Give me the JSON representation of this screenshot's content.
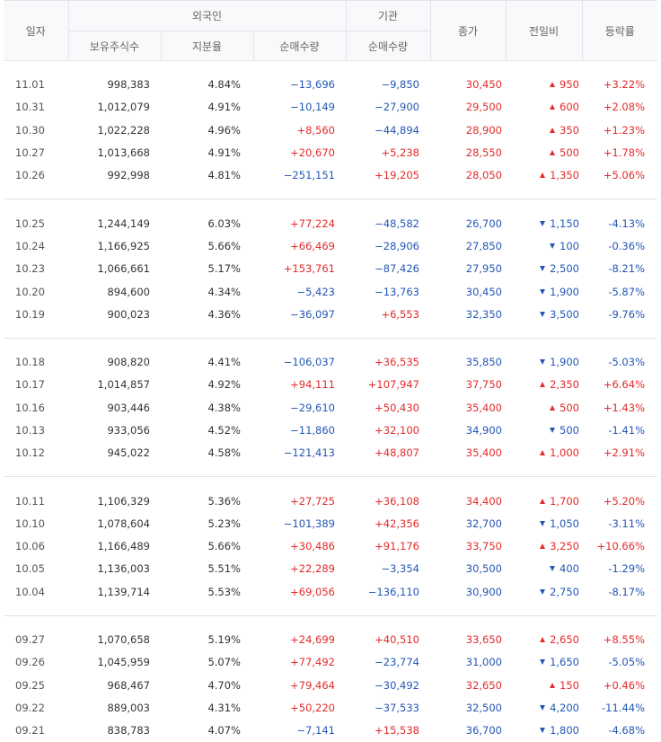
{
  "colors": {
    "up": "#e22b2b",
    "down": "#2457b5"
  },
  "header": {
    "date": "일자",
    "foreign": "외국인",
    "institution": "기관",
    "holdings": "보유주식수",
    "ratio": "지분율",
    "foreign_net": "순매수량",
    "inst_net": "순매수량",
    "close": "종가",
    "change": "전일비",
    "rate": "등락률"
  },
  "rows": [
    {
      "date": "11.01",
      "holdings": "998,383",
      "ratio": "4.84%",
      "fnet": "−13,696",
      "inet": "−9,850",
      "close": "30,450",
      "dir": "up",
      "change": "950",
      "rate": "+3.22%"
    },
    {
      "date": "10.31",
      "holdings": "1,012,079",
      "ratio": "4.91%",
      "fnet": "−10,149",
      "inet": "−27,900",
      "close": "29,500",
      "dir": "up",
      "change": "600",
      "rate": "+2.08%"
    },
    {
      "date": "10.30",
      "holdings": "1,022,228",
      "ratio": "4.96%",
      "fnet": "+8,560",
      "inet": "−44,894",
      "close": "28,900",
      "dir": "up",
      "change": "350",
      "rate": "+1.23%"
    },
    {
      "date": "10.27",
      "holdings": "1,013,668",
      "ratio": "4.91%",
      "fnet": "+20,670",
      "inet": "+5,238",
      "close": "28,550",
      "dir": "up",
      "change": "500",
      "rate": "+1.78%"
    },
    {
      "date": "10.26",
      "holdings": "992,998",
      "ratio": "4.81%",
      "fnet": "−251,151",
      "inet": "+19,205",
      "close": "28,050",
      "dir": "up",
      "change": "1,350",
      "rate": "+5.06%"
    },
    {
      "date": "10.25",
      "holdings": "1,244,149",
      "ratio": "6.03%",
      "fnet": "+77,224",
      "inet": "−48,582",
      "close": "26,700",
      "dir": "down",
      "change": "1,150",
      "rate": "-4.13%"
    },
    {
      "date": "10.24",
      "holdings": "1,166,925",
      "ratio": "5.66%",
      "fnet": "+66,469",
      "inet": "−28,906",
      "close": "27,850",
      "dir": "down",
      "change": "100",
      "rate": "-0.36%"
    },
    {
      "date": "10.23",
      "holdings": "1,066,661",
      "ratio": "5.17%",
      "fnet": "+153,761",
      "inet": "−87,426",
      "close": "27,950",
      "dir": "down",
      "change": "2,500",
      "rate": "-8.21%"
    },
    {
      "date": "10.20",
      "holdings": "894,600",
      "ratio": "4.34%",
      "fnet": "−5,423",
      "inet": "−13,763",
      "close": "30,450",
      "dir": "down",
      "change": "1,900",
      "rate": "-5.87%"
    },
    {
      "date": "10.19",
      "holdings": "900,023",
      "ratio": "4.36%",
      "fnet": "−36,097",
      "inet": "+6,553",
      "close": "32,350",
      "dir": "down",
      "change": "3,500",
      "rate": "-9.76%"
    },
    {
      "date": "10.18",
      "holdings": "908,820",
      "ratio": "4.41%",
      "fnet": "−106,037",
      "inet": "+36,535",
      "close": "35,850",
      "dir": "down",
      "change": "1,900",
      "rate": "-5.03%"
    },
    {
      "date": "10.17",
      "holdings": "1,014,857",
      "ratio": "4.92%",
      "fnet": "+94,111",
      "inet": "+107,947",
      "close": "37,750",
      "dir": "up",
      "change": "2,350",
      "rate": "+6.64%"
    },
    {
      "date": "10.16",
      "holdings": "903,446",
      "ratio": "4.38%",
      "fnet": "−29,610",
      "inet": "+50,430",
      "close": "35,400",
      "dir": "up",
      "change": "500",
      "rate": "+1.43%"
    },
    {
      "date": "10.13",
      "holdings": "933,056",
      "ratio": "4.52%",
      "fnet": "−11,860",
      "inet": "+32,100",
      "close": "34,900",
      "dir": "down",
      "change": "500",
      "rate": "-1.41%"
    },
    {
      "date": "10.12",
      "holdings": "945,022",
      "ratio": "4.58%",
      "fnet": "−121,413",
      "inet": "+48,807",
      "close": "35,400",
      "dir": "up",
      "change": "1,000",
      "rate": "+2.91%"
    },
    {
      "date": "10.11",
      "holdings": "1,106,329",
      "ratio": "5.36%",
      "fnet": "+27,725",
      "inet": "+36,108",
      "close": "34,400",
      "dir": "up",
      "change": "1,700",
      "rate": "+5.20%"
    },
    {
      "date": "10.10",
      "holdings": "1,078,604",
      "ratio": "5.23%",
      "fnet": "−101,389",
      "inet": "+42,356",
      "close": "32,700",
      "dir": "down",
      "change": "1,050",
      "rate": "-3.11%"
    },
    {
      "date": "10.06",
      "holdings": "1,166,489",
      "ratio": "5.66%",
      "fnet": "+30,486",
      "inet": "+91,176",
      "close": "33,750",
      "dir": "up",
      "change": "3,250",
      "rate": "+10.66%"
    },
    {
      "date": "10.05",
      "holdings": "1,136,003",
      "ratio": "5.51%",
      "fnet": "+22,289",
      "inet": "−3,354",
      "close": "30,500",
      "dir": "down",
      "change": "400",
      "rate": "-1.29%"
    },
    {
      "date": "10.04",
      "holdings": "1,139,714",
      "ratio": "5.53%",
      "fnet": "+69,056",
      "inet": "−136,110",
      "close": "30,900",
      "dir": "down",
      "change": "2,750",
      "rate": "-8.17%"
    },
    {
      "date": "09.27",
      "holdings": "1,070,658",
      "ratio": "5.19%",
      "fnet": "+24,699",
      "inet": "+40,510",
      "close": "33,650",
      "dir": "up",
      "change": "2,650",
      "rate": "+8.55%"
    },
    {
      "date": "09.26",
      "holdings": "1,045,959",
      "ratio": "5.07%",
      "fnet": "+77,492",
      "inet": "−23,774",
      "close": "31,000",
      "dir": "down",
      "change": "1,650",
      "rate": "-5.05%"
    },
    {
      "date": "09.25",
      "holdings": "968,467",
      "ratio": "4.70%",
      "fnet": "+79,464",
      "inet": "−30,492",
      "close": "32,650",
      "dir": "up",
      "change": "150",
      "rate": "+0.46%"
    },
    {
      "date": "09.22",
      "holdings": "889,003",
      "ratio": "4.31%",
      "fnet": "+50,220",
      "inet": "−37,533",
      "close": "32,500",
      "dir": "down",
      "change": "4,200",
      "rate": "-11.44%"
    },
    {
      "date": "09.21",
      "holdings": "838,783",
      "ratio": "4.07%",
      "fnet": "−7,141",
      "inet": "+15,538",
      "close": "36,700",
      "dir": "down",
      "change": "1,800",
      "rate": "-4.68%"
    }
  ]
}
